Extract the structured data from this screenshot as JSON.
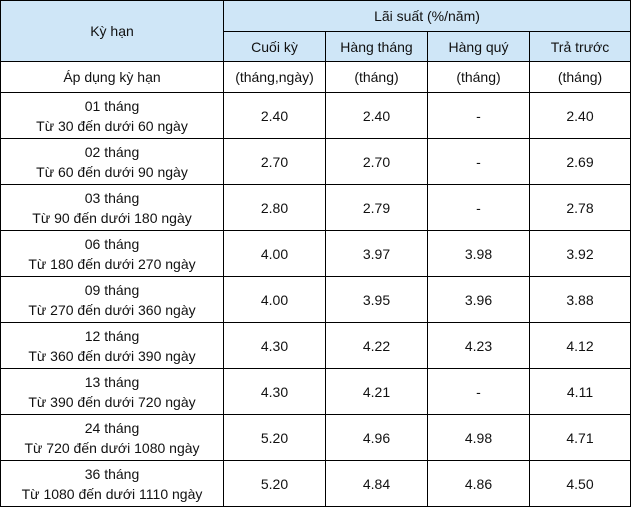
{
  "header": {
    "term_label": "Kỳ hạn",
    "rate_label": "Lãi suất (%/năm)",
    "columns": [
      "Cuối kỳ",
      "Hàng tháng",
      "Hàng quý",
      "Trả trước"
    ]
  },
  "subheader": {
    "label": "Áp dụng kỳ hạn",
    "units": [
      "(tháng,ngày)",
      "(tháng)",
      "(tháng)",
      "(tháng)"
    ]
  },
  "rows": [
    {
      "term": "01 tháng",
      "range": "Từ 30 đến dưới 60 ngày",
      "rates": [
        "2.40",
        "2.40",
        "-",
        "2.40"
      ]
    },
    {
      "term": "02 tháng",
      "range": "Từ 60 đến dưới 90 ngày",
      "rates": [
        "2.70",
        "2.70",
        "-",
        "2.69"
      ]
    },
    {
      "term": "03 tháng",
      "range": "Từ 90 đến dưới 180 ngày",
      "rates": [
        "2.80",
        "2.79",
        "-",
        "2.78"
      ]
    },
    {
      "term": "06 tháng",
      "range": "Từ 180 đến dưới 270 ngày",
      "rates": [
        "4.00",
        "3.97",
        "3.98",
        "3.92"
      ]
    },
    {
      "term": "09 tháng",
      "range": "Từ 270 đến dưới 360 ngày",
      "rates": [
        "4.00",
        "3.95",
        "3.96",
        "3.88"
      ]
    },
    {
      "term": "12 tháng",
      "range": "Từ 360 đến dưới 390 ngày",
      "rates": [
        "4.30",
        "4.22",
        "4.23",
        "4.12"
      ]
    },
    {
      "term": "13 tháng",
      "range": "Từ 390 đến dưới 720 ngày",
      "rates": [
        "4.30",
        "4.21",
        "-",
        "4.11"
      ]
    },
    {
      "term": "24 tháng",
      "range": "Từ 720 đến dưới 1080 ngày",
      "rates": [
        "5.20",
        "4.96",
        "4.98",
        "4.71"
      ]
    },
    {
      "term": "36 tháng",
      "range": "Từ 1080 đến dưới 1110 ngày",
      "rates": [
        "5.20",
        "4.84",
        "4.86",
        "4.50"
      ]
    }
  ],
  "colors": {
    "header_bg": "#cfe6f7",
    "border": "#000000"
  }
}
